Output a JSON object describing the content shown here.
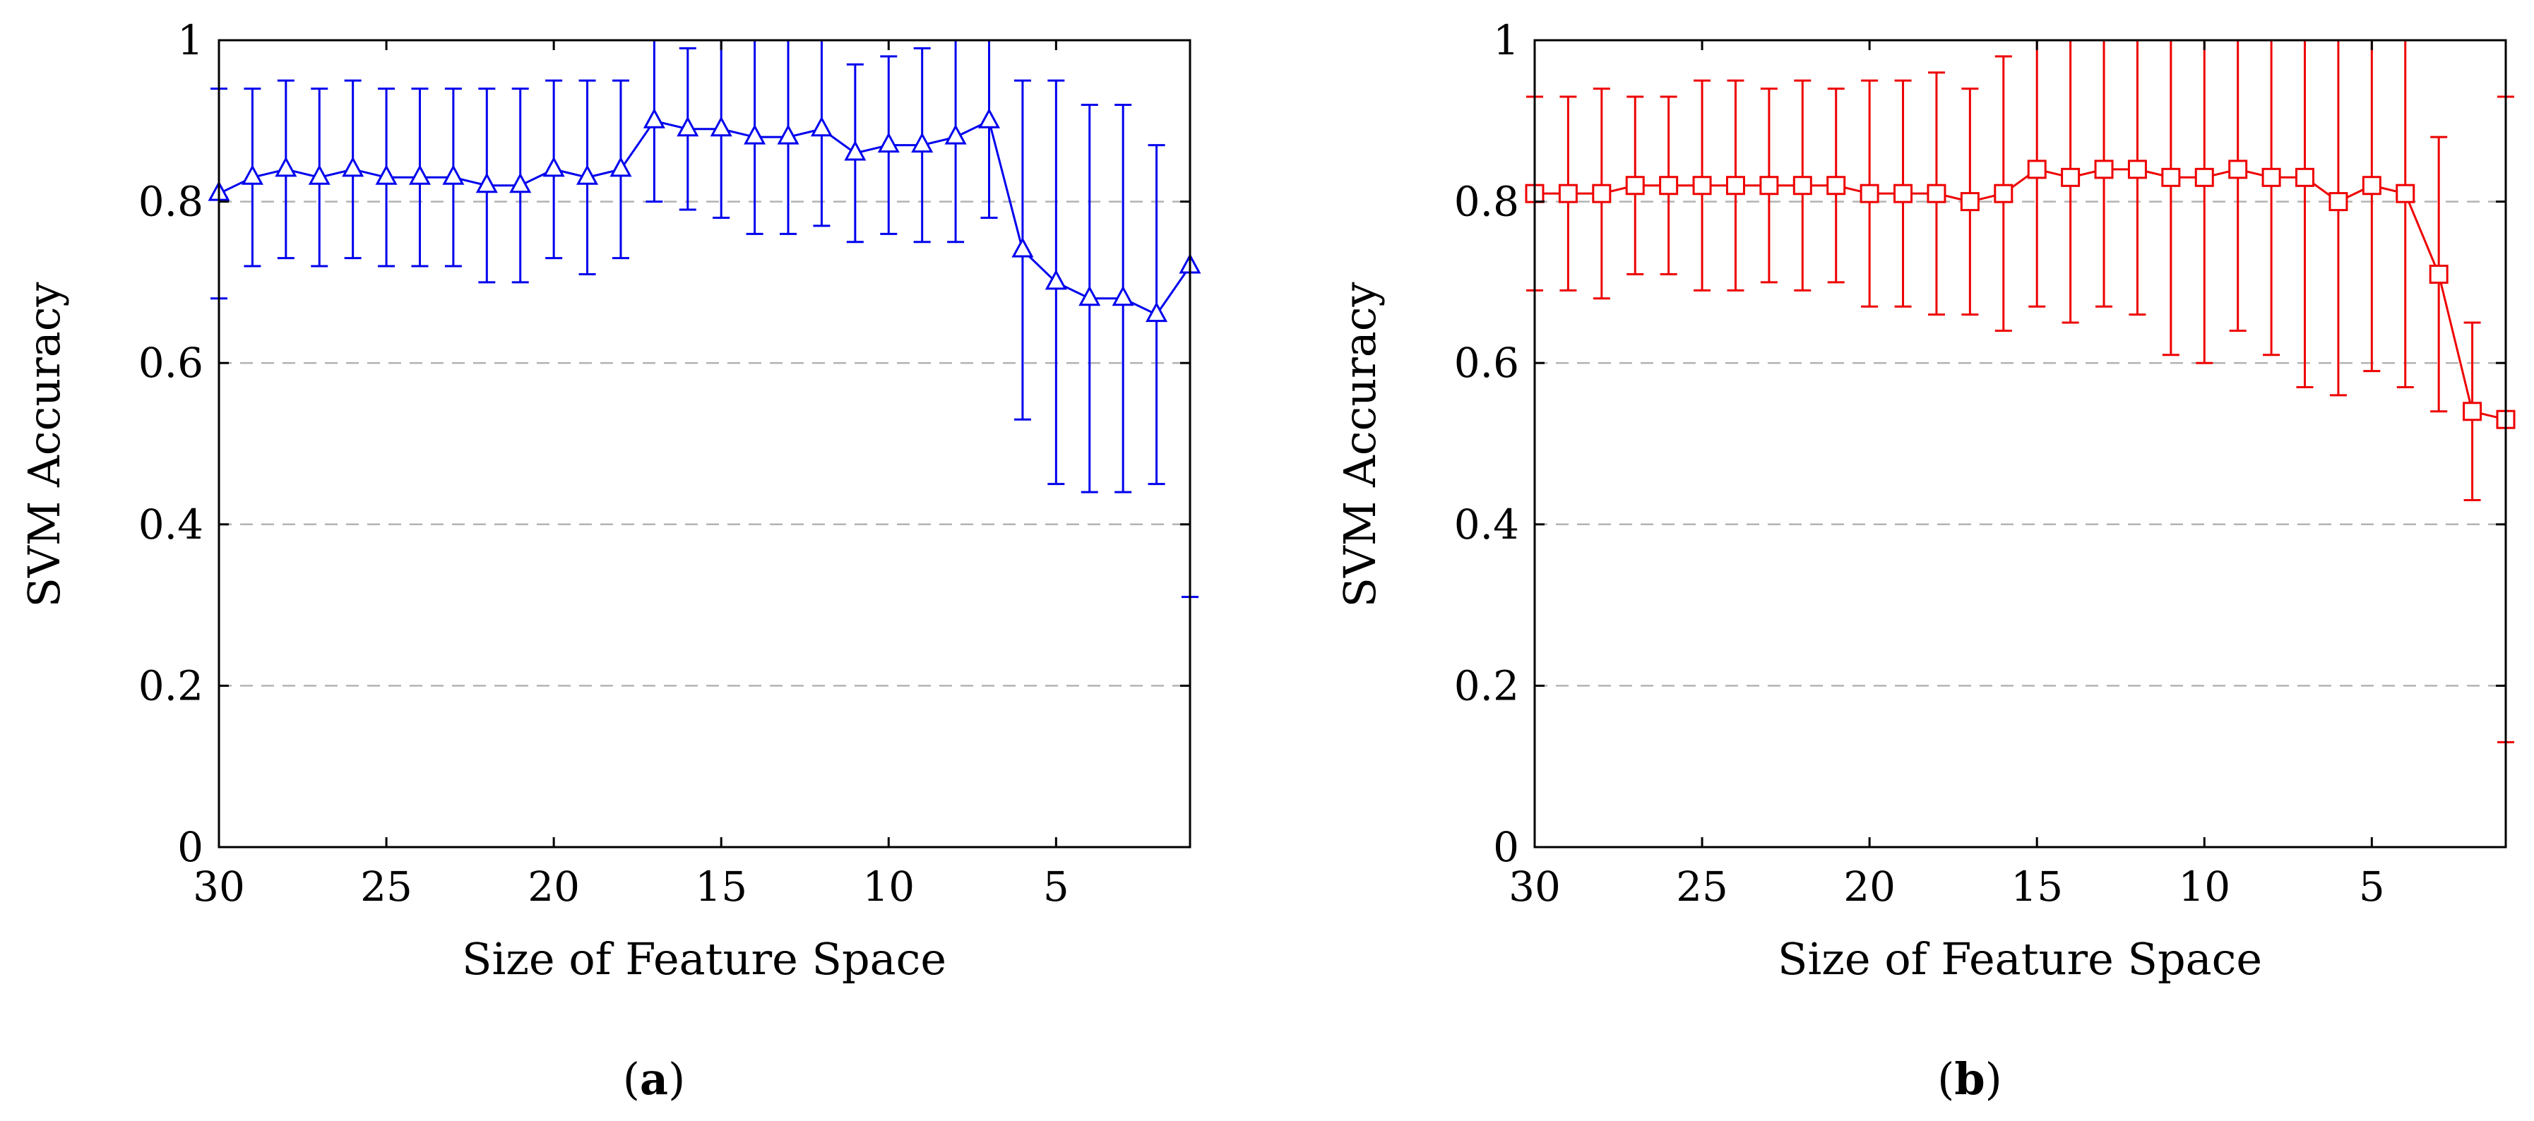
{
  "figure": {
    "captions": [
      {
        "open": "(",
        "letter": "a",
        "close": ")"
      },
      {
        "open": "(",
        "letter": "b",
        "close": ")"
      }
    ]
  },
  "chart_data": [
    {
      "type": "line",
      "error_bars": true,
      "xlabel": "Size of Feature Space",
      "ylabel": "SVM Accuracy",
      "xlim": [
        30,
        1
      ],
      "ylim": [
        0,
        1
      ],
      "x_ticks": [
        30,
        25,
        20,
        15,
        10,
        5
      ],
      "y_ticks": [
        0,
        0.2,
        0.4,
        0.6,
        0.8,
        1
      ],
      "y_tick_labels": [
        "0",
        "0.2",
        "0.4",
        "0.6",
        "0.8",
        "1"
      ],
      "grid": "horizontal dashed",
      "series": [
        {
          "name": "SVM accuracy (a)",
          "color": "#0000ee",
          "marker": "triangle",
          "x": [
            30,
            29,
            28,
            27,
            26,
            25,
            24,
            23,
            22,
            21,
            20,
            19,
            18,
            17,
            16,
            15,
            14,
            13,
            12,
            11,
            10,
            9,
            8,
            7,
            6,
            5,
            4,
            3,
            2,
            1
          ],
          "y": [
            0.81,
            0.83,
            0.84,
            0.83,
            0.84,
            0.83,
            0.83,
            0.83,
            0.82,
            0.82,
            0.84,
            0.83,
            0.84,
            0.9,
            0.89,
            0.89,
            0.88,
            0.88,
            0.89,
            0.86,
            0.87,
            0.87,
            0.88,
            0.9,
            0.74,
            0.7,
            0.68,
            0.68,
            0.66,
            0.72
          ],
          "err_low": [
            0.68,
            0.72,
            0.73,
            0.72,
            0.73,
            0.72,
            0.72,
            0.72,
            0.7,
            0.7,
            0.73,
            0.71,
            0.73,
            0.8,
            0.79,
            0.78,
            0.76,
            0.76,
            0.77,
            0.75,
            0.76,
            0.75,
            0.75,
            0.78,
            0.53,
            0.45,
            0.44,
            0.44,
            0.45,
            0.31
          ],
          "err_high": [
            0.94,
            0.94,
            0.95,
            0.94,
            0.95,
            0.94,
            0.94,
            0.94,
            0.94,
            0.94,
            0.95,
            0.95,
            0.95,
            1.0,
            0.99,
            1.0,
            1.0,
            1.0,
            1.0,
            0.97,
            0.98,
            0.99,
            1.0,
            1.0,
            0.95,
            0.95,
            0.92,
            0.92,
            0.87,
            1.0
          ]
        }
      ]
    },
    {
      "type": "line",
      "error_bars": true,
      "xlabel": "Size of Feature Space",
      "ylabel": "SVM Accuracy",
      "xlim": [
        30,
        1
      ],
      "ylim": [
        0,
        1
      ],
      "x_ticks": [
        30,
        25,
        20,
        15,
        10,
        5
      ],
      "y_ticks": [
        0,
        0.2,
        0.4,
        0.6,
        0.8,
        1
      ],
      "y_tick_labels": [
        "0",
        "0.2",
        "0.4",
        "0.6",
        "0.8",
        "1"
      ],
      "grid": "horizontal dashed",
      "series": [
        {
          "name": "SVM accuracy (b)",
          "color": "#ee0000",
          "marker": "square",
          "x": [
            30,
            29,
            28,
            27,
            26,
            25,
            24,
            23,
            22,
            21,
            20,
            19,
            18,
            17,
            16,
            15,
            14,
            13,
            12,
            11,
            10,
            9,
            8,
            7,
            6,
            5,
            4,
            3,
            2,
            1
          ],
          "y": [
            0.81,
            0.81,
            0.81,
            0.82,
            0.82,
            0.82,
            0.82,
            0.82,
            0.82,
            0.82,
            0.81,
            0.81,
            0.81,
            0.8,
            0.81,
            0.84,
            0.83,
            0.84,
            0.84,
            0.83,
            0.83,
            0.84,
            0.83,
            0.83,
            0.8,
            0.82,
            0.81,
            0.71,
            0.54,
            0.53
          ],
          "err_low": [
            0.69,
            0.69,
            0.68,
            0.71,
            0.71,
            0.69,
            0.69,
            0.7,
            0.69,
            0.7,
            0.67,
            0.67,
            0.66,
            0.66,
            0.64,
            0.67,
            0.65,
            0.67,
            0.66,
            0.61,
            0.6,
            0.64,
            0.61,
            0.57,
            0.56,
            0.59,
            0.57,
            0.54,
            0.43,
            0.13
          ],
          "err_high": [
            0.93,
            0.93,
            0.94,
            0.93,
            0.93,
            0.95,
            0.95,
            0.94,
            0.95,
            0.94,
            0.95,
            0.95,
            0.96,
            0.94,
            0.98,
            1.0,
            1.0,
            1.0,
            1.0,
            1.0,
            1.0,
            1.0,
            1.0,
            1.0,
            1.0,
            1.0,
            1.0,
            0.88,
            0.65,
            0.93
          ]
        }
      ]
    }
  ]
}
